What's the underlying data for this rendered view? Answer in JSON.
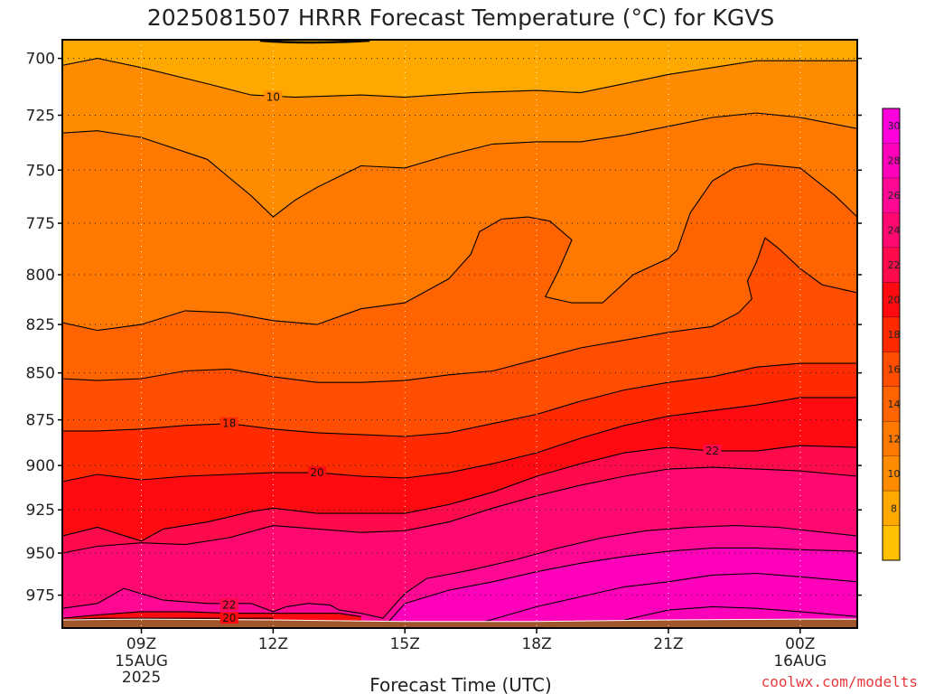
{
  "chart_data": {
    "type": "heatmap",
    "title": "2025081507 HRRR Forecast Temperature (°C) for KGVS",
    "xlabel": "Forecast Time (UTC)",
    "ylabel": "",
    "credit": "coolwx.com/modelts",
    "y_scale": "log-pressure",
    "ylim": [
      995,
      692
    ],
    "xlim_hours": [
      7.2,
      25.3
    ],
    "y_ticks": [
      "700",
      "725",
      "750",
      "775",
      "800",
      "825",
      "850",
      "875",
      "900",
      "925",
      "950",
      "975"
    ],
    "x_ticks": [
      {
        "hour": 9,
        "label": "09Z",
        "sub1": "15AUG",
        "sub2": "2025"
      },
      {
        "hour": 12,
        "label": "12Z",
        "sub1": "",
        "sub2": ""
      },
      {
        "hour": 15,
        "label": "15Z",
        "sub1": "",
        "sub2": ""
      },
      {
        "hour": 18,
        "label": "18Z",
        "sub1": "",
        "sub2": ""
      },
      {
        "hour": 21,
        "label": "21Z",
        "sub1": "",
        "sub2": ""
      },
      {
        "hour": 24,
        "label": "00Z",
        "sub1": "16AUG",
        "sub2": ""
      }
    ],
    "colorbar": {
      "levels": [
        6,
        8,
        10,
        12,
        14,
        16,
        18,
        20,
        22,
        24,
        26,
        28,
        30,
        32
      ],
      "labels": [
        "8",
        "10",
        "12",
        "14",
        "16",
        "18",
        "20",
        "22",
        "24",
        "26",
        "28",
        "30"
      ],
      "colors": [
        "#ffc000",
        "#ffa800",
        "#ff8c00",
        "#ff7800",
        "#ff6400",
        "#ff4e00",
        "#ff2a00",
        "#ff0a10",
        "#ff0a4a",
        "#ff0870",
        "#ff0894",
        "#ff00bb",
        "#ff00dd"
      ]
    },
    "isotherms": [
      {
        "level": 10,
        "label": "10",
        "label_x": 12,
        "label_y": 717,
        "points": [
          [
            7.2,
            703
          ],
          [
            8.0,
            700
          ],
          [
            9.0,
            704
          ],
          [
            10.5,
            711
          ],
          [
            11.5,
            716
          ],
          [
            12.5,
            717
          ],
          [
            14.0,
            716
          ],
          [
            15.0,
            717
          ],
          [
            16.5,
            715
          ],
          [
            18.0,
            714
          ],
          [
            19.0,
            715
          ],
          [
            20.0,
            711
          ],
          [
            21.0,
            707
          ],
          [
            22.0,
            704
          ],
          [
            23.0,
            701
          ],
          [
            24.0,
            701
          ],
          [
            25.3,
            701
          ]
        ]
      },
      {
        "level": 12,
        "label": "",
        "points": [
          [
            7.2,
            733
          ],
          [
            8.0,
            732
          ],
          [
            9.0,
            735
          ],
          [
            10.5,
            745
          ],
          [
            11.5,
            762
          ],
          [
            12.0,
            772
          ],
          [
            12.5,
            764
          ],
          [
            13.0,
            758
          ],
          [
            14.0,
            748
          ],
          [
            15.0,
            749
          ],
          [
            16.0,
            743
          ],
          [
            17.0,
            738
          ],
          [
            18.0,
            737
          ],
          [
            19.0,
            737
          ],
          [
            20.0,
            734
          ],
          [
            21.0,
            730
          ],
          [
            22.0,
            726
          ],
          [
            23.0,
            724
          ],
          [
            24.0,
            726
          ],
          [
            25.3,
            731
          ]
        ]
      },
      {
        "level": 14,
        "label": "",
        "points": [
          [
            7.2,
            824
          ],
          [
            8.0,
            828
          ],
          [
            9.0,
            825
          ],
          [
            10.0,
            818
          ],
          [
            11.0,
            819
          ],
          [
            12.0,
            823
          ],
          [
            13.0,
            825
          ],
          [
            14.0,
            817
          ],
          [
            15.0,
            814
          ],
          [
            16.0,
            802
          ],
          [
            16.5,
            790
          ],
          [
            16.7,
            779
          ],
          [
            17.2,
            773
          ],
          [
            17.8,
            772
          ],
          [
            18.3,
            774
          ],
          [
            18.8,
            783
          ],
          [
            18.5,
            798
          ],
          [
            18.2,
            811
          ],
          [
            18.8,
            814
          ],
          [
            19.5,
            814
          ],
          [
            19.8,
            808
          ],
          [
            20.2,
            800
          ],
          [
            21.0,
            792
          ],
          [
            21.2,
            788
          ],
          [
            21.5,
            770
          ],
          [
            22.0,
            755
          ],
          [
            22.5,
            749
          ],
          [
            23.0,
            747
          ],
          [
            24.0,
            749
          ],
          [
            24.8,
            762
          ],
          [
            25.3,
            772
          ]
        ]
      },
      {
        "level": 16,
        "label": "",
        "points": [
          [
            7.2,
            853
          ],
          [
            8.0,
            854
          ],
          [
            9.0,
            853
          ],
          [
            10.0,
            849
          ],
          [
            11.0,
            848
          ],
          [
            12.0,
            852
          ],
          [
            13.0,
            855
          ],
          [
            14.0,
            855
          ],
          [
            15.0,
            854
          ],
          [
            16.0,
            851
          ],
          [
            17.0,
            849
          ],
          [
            18.0,
            843
          ],
          [
            19.0,
            837
          ],
          [
            20.0,
            833
          ],
          [
            21.0,
            829
          ],
          [
            22.0,
            826
          ],
          [
            22.6,
            819
          ],
          [
            22.9,
            812
          ],
          [
            22.8,
            803
          ],
          [
            23.0,
            794
          ],
          [
            23.2,
            782
          ],
          [
            23.5,
            787
          ],
          [
            24.0,
            797
          ],
          [
            24.5,
            805
          ],
          [
            25.3,
            809
          ]
        ]
      },
      {
        "level": 18,
        "label": "18",
        "label_x": 11,
        "label_y": 877,
        "points": [
          [
            7.2,
            881
          ],
          [
            8.0,
            881
          ],
          [
            9.0,
            880
          ],
          [
            10.0,
            878
          ],
          [
            11.0,
            877
          ],
          [
            12.0,
            880
          ],
          [
            13.0,
            882
          ],
          [
            14.0,
            883
          ],
          [
            15.0,
            884
          ],
          [
            16.0,
            882
          ],
          [
            17.0,
            877
          ],
          [
            18.0,
            872
          ],
          [
            19.0,
            865
          ],
          [
            20.0,
            859
          ],
          [
            21.0,
            855
          ],
          [
            22.0,
            852
          ],
          [
            23.0,
            847
          ],
          [
            24.0,
            845
          ],
          [
            25.3,
            845
          ]
        ]
      },
      {
        "level": 20,
        "label": "20",
        "label_x": 13,
        "label_y": 904,
        "points": [
          [
            7.2,
            909
          ],
          [
            8.0,
            905
          ],
          [
            9.0,
            908
          ],
          [
            10.0,
            906
          ],
          [
            11.0,
            905
          ],
          [
            12.0,
            904
          ],
          [
            13.0,
            904
          ],
          [
            14.0,
            906
          ],
          [
            15.0,
            907
          ],
          [
            16.0,
            904
          ],
          [
            17.0,
            899
          ],
          [
            18.0,
            893
          ],
          [
            19.0,
            885
          ],
          [
            20.0,
            878
          ],
          [
            21.0,
            873
          ],
          [
            22.0,
            870
          ],
          [
            23.0,
            867
          ],
          [
            24.0,
            863
          ],
          [
            25.3,
            863
          ]
        ]
      },
      {
        "level": 22,
        "label": "22",
        "label_x": 22,
        "label_y": 892,
        "points": [
          [
            7.2,
            940
          ],
          [
            8.0,
            935
          ],
          [
            9.0,
            943
          ],
          [
            9.5,
            936
          ],
          [
            10.5,
            932
          ],
          [
            11.5,
            926
          ],
          [
            12.0,
            924
          ],
          [
            13.0,
            927
          ],
          [
            14.0,
            927
          ],
          [
            15.0,
            927
          ],
          [
            16.0,
            922
          ],
          [
            17.0,
            915
          ],
          [
            18.0,
            906
          ],
          [
            19.0,
            899
          ],
          [
            20.0,
            893
          ],
          [
            21.0,
            890
          ],
          [
            22.0,
            892
          ],
          [
            23.0,
            892
          ],
          [
            24.0,
            889
          ],
          [
            25.3,
            890
          ]
        ]
      },
      {
        "level": 24,
        "label": "",
        "points": [
          [
            7.2,
            950
          ],
          [
            8.0,
            946
          ],
          [
            9.0,
            944
          ],
          [
            10.0,
            945
          ],
          [
            11.0,
            941
          ],
          [
            12.0,
            934
          ],
          [
            13.0,
            936
          ],
          [
            14.0,
            938
          ],
          [
            15.0,
            937
          ],
          [
            16.0,
            932
          ],
          [
            17.0,
            924
          ],
          [
            18.0,
            917
          ],
          [
            19.0,
            911
          ],
          [
            20.0,
            906
          ],
          [
            21.0,
            902
          ],
          [
            22.0,
            901
          ],
          [
            23.0,
            902
          ],
          [
            24.0,
            903
          ],
          [
            25.3,
            906
          ]
        ]
      },
      {
        "level": 26,
        "label": "",
        "points": [
          [
            7.2,
            983
          ],
          [
            8.0,
            980
          ],
          [
            8.6,
            971
          ],
          [
            9.5,
            978
          ],
          [
            10.5,
            980
          ],
          [
            11.5,
            980
          ],
          [
            12.0,
            985
          ],
          [
            12.3,
            982
          ],
          [
            12.8,
            980
          ],
          [
            13.3,
            981
          ],
          [
            13.5,
            984
          ],
          [
            14.0,
            986
          ],
          [
            14.5,
            989
          ],
          [
            15.0,
            974
          ],
          [
            15.5,
            965
          ],
          [
            16.5,
            960
          ],
          [
            17.5,
            954
          ],
          [
            18.5,
            947
          ],
          [
            19.5,
            941
          ],
          [
            20.5,
            937
          ],
          [
            21.5,
            935
          ],
          [
            22.5,
            934
          ],
          [
            23.5,
            935
          ],
          [
            25.3,
            940
          ]
        ]
      },
      {
        "level": 28,
        "label": "",
        "points": [
          [
            14.6,
            992
          ],
          [
            15.0,
            980
          ],
          [
            16.0,
            972
          ],
          [
            17.0,
            967
          ],
          [
            18.0,
            961
          ],
          [
            19.0,
            956
          ],
          [
            20.0,
            952
          ],
          [
            21.0,
            949
          ],
          [
            22.0,
            947
          ],
          [
            23.0,
            947
          ],
          [
            24.0,
            948
          ],
          [
            25.3,
            949
          ]
        ]
      },
      {
        "level": 29,
        "label": "",
        "points": [
          [
            16.7,
            992
          ],
          [
            18.0,
            982
          ],
          [
            19.0,
            976
          ],
          [
            20.0,
            970
          ],
          [
            21.0,
            967
          ],
          [
            22.0,
            963
          ],
          [
            23.0,
            962
          ],
          [
            24.0,
            964
          ],
          [
            25.3,
            967
          ]
        ]
      },
      {
        "level": 30,
        "label": "",
        "points": [
          [
            20.0,
            990
          ],
          [
            21.0,
            984
          ],
          [
            22.0,
            982
          ],
          [
            23.0,
            983
          ],
          [
            24.0,
            985
          ],
          [
            25.3,
            988
          ]
        ]
      },
      {
        "level": 22,
        "label": "22",
        "label_x": 11,
        "label_y": 981,
        "points": [
          [
            7.2,
            989
          ],
          [
            8.0,
            987
          ],
          [
            9.0,
            985
          ],
          [
            10.0,
            985
          ],
          [
            11.0,
            986
          ],
          [
            12.0,
            986
          ],
          [
            13.0,
            986
          ],
          [
            13.5,
            986
          ],
          [
            14.0,
            988
          ]
        ]
      },
      {
        "level": 20,
        "label": "20",
        "label_x": 11,
        "label_y": 989,
        "points": [
          [
            7.2,
            990
          ],
          [
            8.0,
            989
          ],
          [
            9.0,
            989
          ],
          [
            10.0,
            989
          ],
          [
            11.0,
            989
          ],
          [
            12.0,
            989
          ]
        ]
      }
    ],
    "ground": {
      "color": "#a0562a",
      "top": [
        [
          7.2,
          990
        ],
        [
          9.0,
          989.5
        ],
        [
          12.0,
          990
        ],
        [
          15.0,
          991
        ],
        [
          18.0,
          991
        ],
        [
          21.0,
          990
        ],
        [
          24.0,
          989.5
        ],
        [
          25.3,
          989.5
        ]
      ]
    }
  }
}
